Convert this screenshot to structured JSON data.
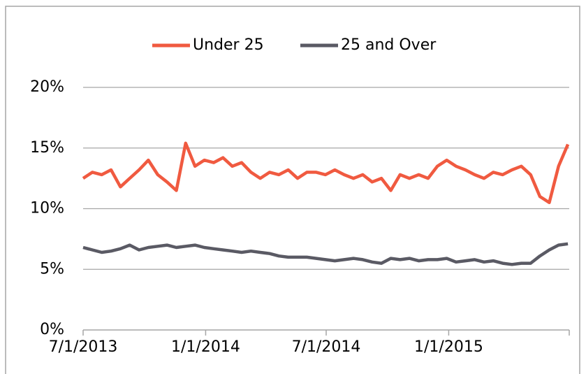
{
  "chart_data": {
    "type": "line",
    "x": [
      "7/1/2013",
      "7/15/2013",
      "7/29/2013",
      "8/12/2013",
      "8/26/2013",
      "9/9/2013",
      "9/23/2013",
      "10/7/2013",
      "10/21/2013",
      "11/4/2013",
      "11/18/2013",
      "12/2/2013",
      "12/16/2013",
      "12/30/2013",
      "1/13/2014",
      "1/27/2014",
      "2/10/2014",
      "2/24/2014",
      "3/10/2014",
      "3/24/2014",
      "4/7/2014",
      "4/21/2014",
      "5/5/2014",
      "5/19/2014",
      "6/2/2014",
      "6/16/2014",
      "6/30/2014",
      "7/14/2014",
      "7/28/2014",
      "8/11/2014",
      "8/25/2014",
      "9/8/2014",
      "9/22/2014",
      "10/6/2014",
      "10/20/2014",
      "11/3/2014",
      "11/17/2014",
      "12/1/2014",
      "12/15/2014",
      "12/29/2014",
      "1/12/2015",
      "1/26/2015",
      "2/9/2015",
      "2/23/2015",
      "3/9/2015",
      "3/23/2015",
      "4/6/2015",
      "4/20/2015",
      "5/4/2015",
      "5/18/2015",
      "6/1/2015",
      "6/15/2015",
      "6/29/2015"
    ],
    "series": [
      {
        "name": "Under 25",
        "color": "#f05a40",
        "values": [
          12.5,
          13,
          12.8,
          13.2,
          11.8,
          12.5,
          13.2,
          14,
          12.8,
          12.2,
          11.5,
          15.4,
          13.5,
          14,
          13.8,
          14.2,
          13.5,
          13.8,
          13,
          12.5,
          13,
          12.8,
          13.2,
          12.5,
          13,
          13,
          12.8,
          13.2,
          12.8,
          12.5,
          12.8,
          12.2,
          12.5,
          11.5,
          12.8,
          12.5,
          12.8,
          12.5,
          13.5,
          14,
          13.5,
          13.2,
          12.8,
          12.5,
          13,
          12.8,
          13.2,
          13.5,
          12.8,
          11,
          10.5,
          13.5,
          15.3
        ]
      },
      {
        "name": "25 and Over",
        "color": "#5a5a64",
        "values": [
          6.8,
          6.6,
          6.4,
          6.5,
          6.7,
          7,
          6.6,
          6.8,
          6.9,
          7,
          6.8,
          6.9,
          7,
          6.8,
          6.7,
          6.6,
          6.5,
          6.4,
          6.5,
          6.4,
          6.3,
          6.1,
          6,
          6,
          6,
          5.9,
          5.8,
          5.7,
          5.8,
          5.9,
          5.8,
          5.6,
          5.5,
          5.9,
          5.8,
          5.9,
          5.7,
          5.8,
          5.8,
          5.9,
          5.6,
          5.7,
          5.8,
          5.6,
          5.7,
          5.5,
          5.4,
          5.5,
          5.5,
          6.1,
          6.6,
          7,
          7.1
        ]
      }
    ],
    "xlim": [
      "7/1/2013",
      "7/1/2015"
    ],
    "xticks": [
      "7/1/2013",
      "1/1/2014",
      "7/1/2014",
      "1/1/2015"
    ],
    "ylim": [
      0,
      20
    ],
    "yticks": [
      {
        "value": 0,
        "label": "0%"
      },
      {
        "value": 5,
        "label": "5%"
      },
      {
        "value": 10,
        "label": "10%"
      },
      {
        "value": 15,
        "label": "15%"
      },
      {
        "value": 20,
        "label": "20%"
      }
    ],
    "grid": true,
    "legend": "top"
  }
}
